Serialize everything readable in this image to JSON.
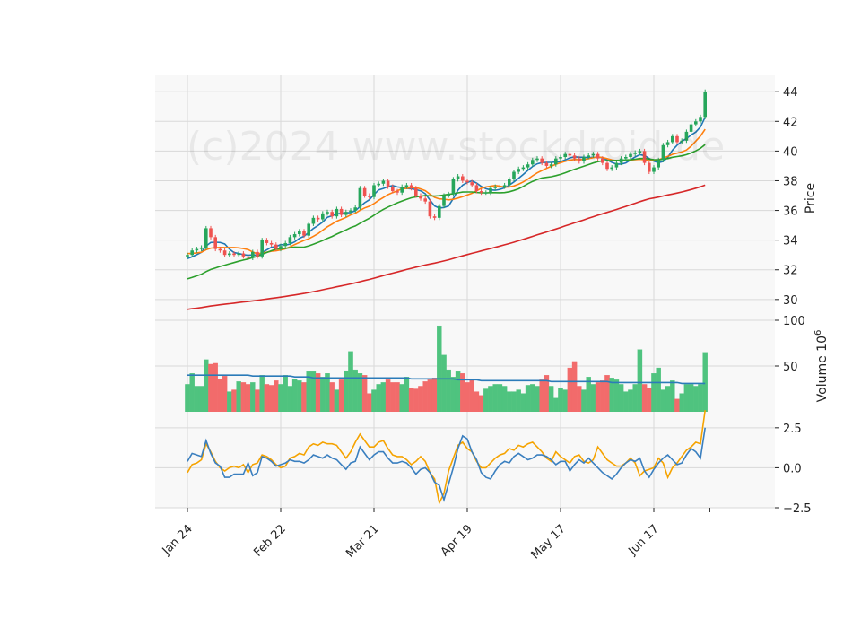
{
  "watermark": "(c)2024 www.stockdroid.de",
  "chart_data": {
    "type": "candlestick",
    "x_tick_labels": [
      "Jan 24",
      "Feb 22",
      "Mar 21",
      "Apr 19",
      "May 17",
      "Jun 17"
    ],
    "x_tick_index": [
      0,
      20,
      40,
      60,
      80,
      100
    ],
    "price_panel": {
      "ylabel": "Price",
      "ylim": [
        28.6,
        45.1
      ],
      "yticks": [
        30,
        32,
        34,
        36,
        38,
        40,
        42,
        44
      ],
      "close": [
        33.0,
        33.3,
        33.4,
        33.5,
        34.8,
        34.2,
        33.4,
        33.3,
        33.0,
        33.1,
        33.0,
        33.1,
        32.9,
        32.8,
        33.2,
        32.9,
        34.0,
        33.8,
        33.7,
        33.4,
        33.6,
        33.8,
        34.2,
        34.4,
        34.6,
        34.3,
        35.1,
        35.5,
        35.4,
        35.8,
        35.9,
        35.6,
        36.1,
        35.7,
        35.9,
        36.0,
        36.2,
        37.5,
        37.0,
        36.9,
        37.7,
        37.8,
        38.0,
        37.6,
        37.3,
        37.2,
        37.6,
        37.7,
        37.5,
        37.0,
        36.8,
        36.6,
        35.6,
        35.5,
        36.3,
        37.0,
        37.1,
        38.1,
        38.3,
        38.0,
        37.9,
        37.7,
        37.3,
        37.2,
        37.2,
        37.5,
        37.6,
        37.6,
        37.7,
        38.1,
        38.6,
        38.8,
        38.9,
        39.1,
        39.4,
        39.5,
        39.2,
        39.0,
        39.1,
        39.5,
        39.6,
        39.8,
        39.7,
        39.5,
        39.3,
        39.6,
        39.7,
        39.8,
        39.5,
        39.2,
        38.8,
        38.9,
        39.2,
        39.5,
        39.6,
        39.8,
        39.9,
        40.0,
        39.2,
        38.6,
        38.9,
        39.4,
        40.4,
        40.6,
        41.0,
        40.6,
        40.7,
        41.3,
        41.8,
        42.0,
        42.3,
        44.0
      ]
    },
    "volume_panel": {
      "ylabel": "Volume",
      "unit": "10^6",
      "ylim": [
        0,
        100
      ],
      "yticks": [
        50,
        100
      ],
      "values": [
        30,
        42,
        28,
        28,
        57,
        52,
        53,
        36,
        39,
        22,
        24,
        33,
        32,
        30,
        32,
        24,
        40,
        30,
        29,
        34,
        30,
        40,
        28,
        36,
        34,
        32,
        44,
        44,
        42,
        38,
        42,
        32,
        24,
        35,
        45,
        66,
        46,
        42,
        40,
        20,
        24,
        30,
        32,
        35,
        32,
        32,
        30,
        38,
        26,
        25,
        28,
        33,
        35,
        37,
        94,
        62,
        46,
        38,
        44,
        42,
        32,
        36,
        22,
        18,
        25,
        28,
        30,
        30,
        28,
        22,
        22,
        24,
        20,
        29,
        30,
        28,
        35,
        40,
        28,
        15,
        26,
        24,
        48,
        55,
        28,
        24,
        38,
        30,
        32,
        34,
        40,
        37,
        35,
        30,
        22,
        24,
        30,
        68,
        30,
        26,
        42,
        48,
        24,
        28,
        34,
        14,
        20,
        30,
        30,
        28,
        30,
        65
      ],
      "ma": [
        40,
        40,
        40,
        40,
        40,
        40,
        40,
        40,
        40,
        40,
        40,
        40,
        40,
        40,
        39,
        39,
        39,
        39,
        39,
        39,
        39,
        39,
        39,
        38,
        38,
        38,
        38,
        37,
        37,
        37,
        37,
        37,
        37,
        37,
        37,
        37,
        37,
        37,
        37,
        37,
        37,
        37,
        37,
        37,
        37,
        37,
        37,
        37,
        36,
        36,
        36,
        36,
        36,
        36,
        36,
        36,
        36,
        36,
        35,
        35,
        35,
        35,
        35,
        34,
        34,
        34,
        34,
        34,
        34,
        34,
        34,
        34,
        34,
        34,
        34,
        34,
        34,
        34,
        33,
        33,
        33,
        33,
        33,
        33,
        33,
        33,
        33,
        33,
        33,
        33,
        33,
        32,
        32,
        32,
        32,
        32,
        32,
        32,
        32,
        32,
        32,
        32,
        32,
        32,
        32,
        32,
        31,
        31,
        31,
        31,
        31,
        31
      ]
    },
    "indicator_panel": {
      "ylim": [
        -2.5,
        3.5
      ],
      "yticks": [
        -2.5,
        0.0,
        2.5
      ],
      "line_blue": [
        0.4,
        0.9,
        0.8,
        0.7,
        1.7,
        0.9,
        0.3,
        0.1,
        -0.6,
        -0.6,
        -0.4,
        -0.4,
        -0.4,
        0.3,
        -0.5,
        -0.3,
        0.7,
        0.6,
        0.4,
        0.1,
        0.2,
        0.3,
        0.5,
        0.4,
        0.4,
        0.3,
        0.5,
        0.8,
        0.7,
        0.6,
        0.8,
        0.6,
        0.5,
        0.2,
        -0.1,
        0.3,
        0.4,
        1.3,
        0.9,
        0.5,
        0.8,
        1.0,
        1.0,
        0.6,
        0.3,
        0.3,
        0.4,
        0.3,
        0.0,
        -0.4,
        -0.1,
        0.0,
        -0.3,
        -0.9,
        -1.1,
        -2.0,
        -1.0,
        0.0,
        1.2,
        2.0,
        1.8,
        1.0,
        0.5,
        -0.3,
        -0.6,
        -0.7,
        -0.2,
        0.2,
        0.4,
        0.3,
        0.7,
        0.9,
        0.7,
        0.5,
        0.6,
        0.8,
        0.8,
        0.7,
        0.5,
        0.2,
        0.4,
        0.4,
        -0.2,
        0.2,
        0.5,
        0.3,
        0.6,
        0.3,
        0.0,
        -0.3,
        -0.5,
        -0.7,
        -0.4,
        0.0,
        0.3,
        0.5,
        0.4,
        0.6,
        -0.2,
        -0.6,
        -0.1,
        0.3,
        0.6,
        0.8,
        0.5,
        0.2,
        0.3,
        0.8,
        1.2,
        1.0,
        0.6,
        2.5
      ],
      "line_orange": [
        -0.3,
        0.2,
        0.3,
        0.5,
        1.5,
        1.0,
        0.4,
        0.0,
        -0.2,
        0.0,
        0.1,
        0.0,
        0.2,
        -0.3,
        0.2,
        0.3,
        0.8,
        0.7,
        0.5,
        0.2,
        0.0,
        0.1,
        0.6,
        0.7,
        0.9,
        0.8,
        1.3,
        1.5,
        1.4,
        1.6,
        1.5,
        1.5,
        1.4,
        1.0,
        0.6,
        1.0,
        1.6,
        2.1,
        1.7,
        1.3,
        1.3,
        1.6,
        1.7,
        1.2,
        0.8,
        0.7,
        0.7,
        0.5,
        0.2,
        0.4,
        0.7,
        0.4,
        -0.3,
        -0.7,
        -2.2,
        -1.6,
        -0.2,
        0.6,
        1.4,
        1.6,
        1.2,
        1.0,
        0.4,
        0.0,
        0.0,
        0.3,
        0.6,
        0.8,
        0.9,
        1.2,
        1.1,
        1.4,
        1.3,
        1.5,
        1.6,
        1.3,
        1.0,
        0.6,
        0.4,
        1.0,
        0.7,
        0.5,
        0.3,
        0.7,
        0.8,
        0.4,
        0.3,
        0.5,
        1.3,
        0.9,
        0.5,
        0.3,
        0.1,
        0.1,
        0.3,
        0.6,
        0.3,
        -0.5,
        -0.2,
        -0.1,
        0.0,
        0.6,
        0.3,
        -0.6,
        0.0,
        0.3,
        0.7,
        1.1,
        1.3,
        1.6,
        1.5,
        3.6
      ]
    },
    "ma_colors": {
      "fast": "#1f77b4",
      "mid": "#ff7f0e",
      "slow": "#2ca02c",
      "long": "#d62728"
    },
    "colors": {
      "up": "#26a65b",
      "down": "#ef5350",
      "up_vol": "#4fc37f",
      "down_vol": "#f26b6b",
      "vol_ma": "#2b7bb9",
      "ind_blue": "#3a7fbf",
      "ind_orange": "#f5a300"
    }
  }
}
